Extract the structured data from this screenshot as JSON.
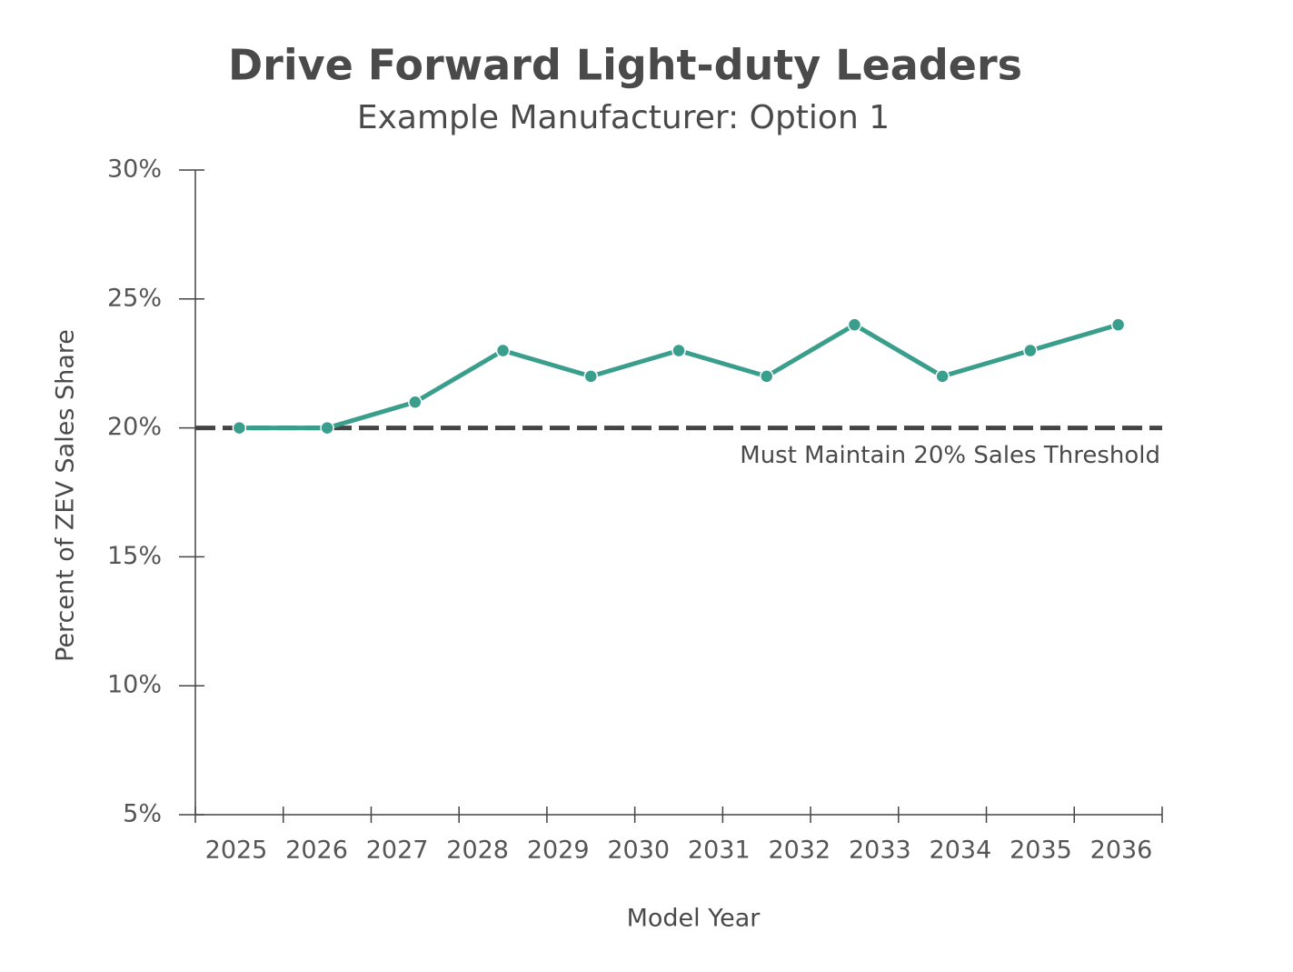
{
  "chart_data": {
    "type": "line",
    "title": "Drive Forward Light-duty Leaders",
    "subtitle": "Example Manufacturer: Option 1",
    "x_label": "Model Year",
    "y_label": "Percent of ZEV Sales Share",
    "categories": [
      "2025",
      "2026",
      "2027",
      "2028",
      "2029",
      "2030",
      "2031",
      "2032",
      "2033",
      "2034",
      "2035",
      "2036"
    ],
    "series": [
      {
        "name": "ZEV Sales Share",
        "color": "#3a9e8c",
        "values": [
          20,
          20,
          21,
          23,
          22,
          23,
          22,
          24,
          22,
          23,
          24,
          null
        ]
      }
    ],
    "threshold": {
      "value": 20,
      "label": "Must Maintain 20% Sales Threshold",
      "color": "#444444"
    },
    "ylim": [
      5,
      30
    ],
    "yticks": [
      {
        "value": 5,
        "label": "5%"
      },
      {
        "value": 10,
        "label": "10%"
      },
      {
        "value": 15,
        "label": "15%"
      },
      {
        "value": 20,
        "label": "20%"
      },
      {
        "value": 25,
        "label": "25%"
      },
      {
        "value": 30,
        "label": "30%"
      }
    ]
  }
}
